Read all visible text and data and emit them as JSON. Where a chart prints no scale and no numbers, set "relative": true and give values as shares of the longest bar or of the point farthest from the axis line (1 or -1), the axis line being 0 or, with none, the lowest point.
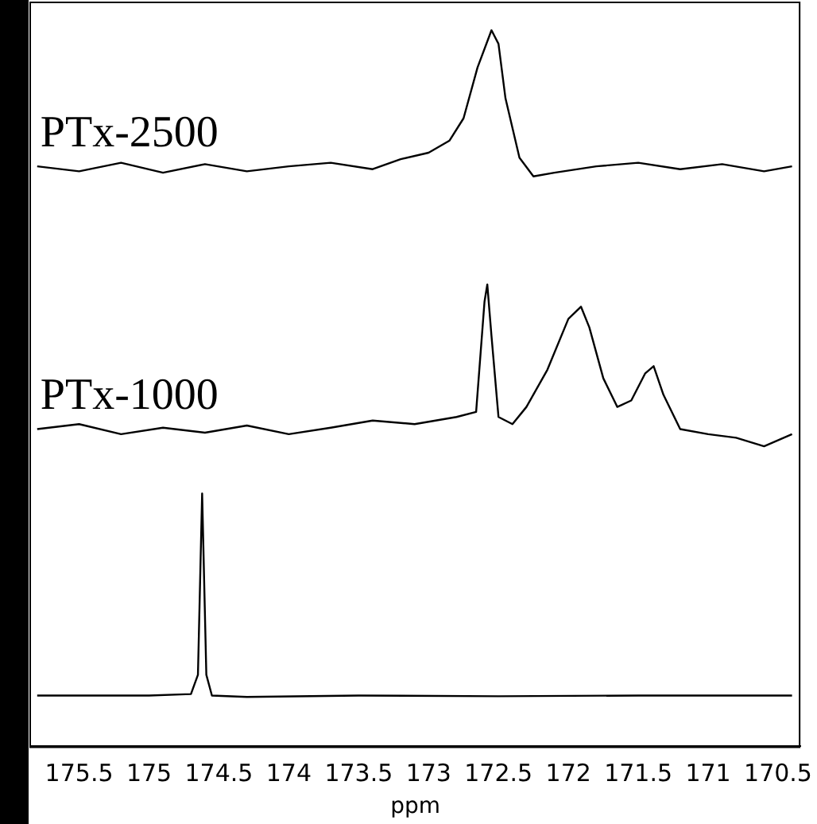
{
  "chart_data": {
    "type": "line",
    "xlabel": "ppm",
    "relative": true,
    "grid": false,
    "legend": false,
    "marker": "none",
    "xlim": [
      175.85,
      170.34
    ],
    "xticks": [
      175.5,
      175,
      174.5,
      174,
      173.5,
      173,
      172.5,
      172,
      171.5,
      171,
      170.5
    ],
    "series": [
      {
        "name": "PTx-2500",
        "color": "#000000",
        "x": [
          175.8,
          175.5,
          175.2,
          174.9,
          174.6,
          174.3,
          174.0,
          173.7,
          173.4,
          173.2,
          173.0,
          172.85,
          172.75,
          172.65,
          172.55,
          172.5,
          172.45,
          172.35,
          172.25,
          172.1,
          171.8,
          171.5,
          171.2,
          170.9,
          170.6,
          170.4
        ],
        "values": [
          0.81,
          0.803,
          0.815,
          0.801,
          0.813,
          0.803,
          0.81,
          0.815,
          0.806,
          0.82,
          0.829,
          0.846,
          0.877,
          0.948,
          1.0,
          0.981,
          0.905,
          0.822,
          0.796,
          0.801,
          0.81,
          0.815,
          0.806,
          0.813,
          0.803,
          0.81
        ]
      },
      {
        "name": "PTx-1000",
        "color": "#000000",
        "x": [
          175.8,
          175.5,
          175.2,
          174.9,
          174.6,
          174.3,
          174.0,
          173.7,
          173.4,
          173.1,
          172.8,
          172.66,
          172.6,
          172.58,
          172.55,
          172.5,
          172.4,
          172.3,
          172.15,
          172.0,
          171.91,
          171.85,
          171.75,
          171.65,
          171.55,
          171.45,
          171.39,
          171.32,
          171.2,
          171.0,
          170.8,
          170.6,
          170.4
        ],
        "values": [
          0.443,
          0.45,
          0.436,
          0.445,
          0.438,
          0.448,
          0.436,
          0.445,
          0.455,
          0.45,
          0.46,
          0.467,
          0.621,
          0.645,
          0.573,
          0.46,
          0.45,
          0.474,
          0.526,
          0.597,
          0.614,
          0.585,
          0.514,
          0.474,
          0.483,
          0.521,
          0.531,
          0.491,
          0.443,
          0.436,
          0.431,
          0.419,
          0.436
        ]
      },
      {
        "color": "#000000",
        "x": [
          175.8,
          175.0,
          174.7,
          174.65,
          174.62,
          174.59,
          174.55,
          174.3,
          173.5,
          172.5,
          171.5,
          170.4
        ],
        "values": [
          0.071,
          0.071,
          0.073,
          0.1,
          0.353,
          0.1,
          0.071,
          0.069,
          0.071,
          0.07,
          0.071,
          0.071
        ]
      }
    ]
  }
}
